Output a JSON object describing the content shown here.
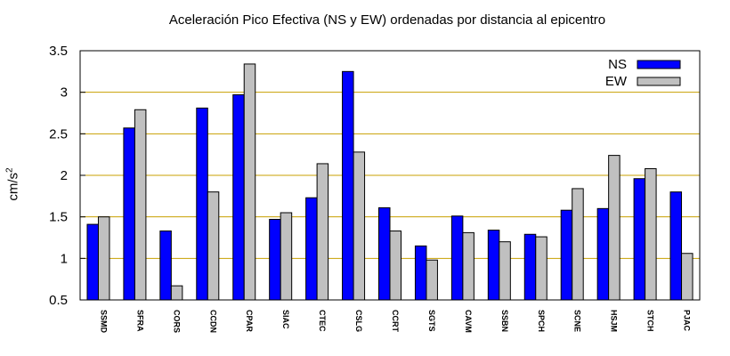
{
  "chart_data": {
    "type": "bar",
    "title": "Aceleración Pico Efectiva (NS y EW) ordenadas por distancia al epicentro",
    "ylabel": "cm/s",
    "ylabel_superscript": "2",
    "xlabel": "",
    "ylim": [
      0.5,
      3.5
    ],
    "yticks": [
      "0.5",
      "1",
      "1.5",
      "2",
      "2.5",
      "3",
      "3.5"
    ],
    "grid": "horizontal",
    "legend_position": "top-right",
    "categories": [
      "SSMD",
      "SFRA",
      "CORS",
      "CCDN",
      "CPAR",
      "SIAC",
      "CTEC",
      "CSLG",
      "CCRT",
      "SGTS",
      "CAVM",
      "SSBN",
      "SPCH",
      "SCNE",
      "HSJM",
      "STCH",
      "PJAC"
    ],
    "series": [
      {
        "name": "NS",
        "color": "#0000ff",
        "values": [
          1.41,
          2.57,
          1.33,
          2.81,
          2.97,
          1.47,
          1.73,
          3.25,
          1.61,
          1.15,
          1.51,
          1.34,
          1.29,
          1.58,
          1.6,
          1.96,
          1.8
        ]
      },
      {
        "name": "EW",
        "color": "#c0c0c0",
        "values": [
          1.5,
          2.79,
          0.67,
          1.8,
          3.34,
          1.55,
          2.14,
          2.28,
          1.33,
          0.98,
          1.31,
          1.2,
          1.26,
          1.84,
          2.24,
          2.08,
          1.06
        ]
      }
    ],
    "gridline_color": "#c8a000"
  }
}
